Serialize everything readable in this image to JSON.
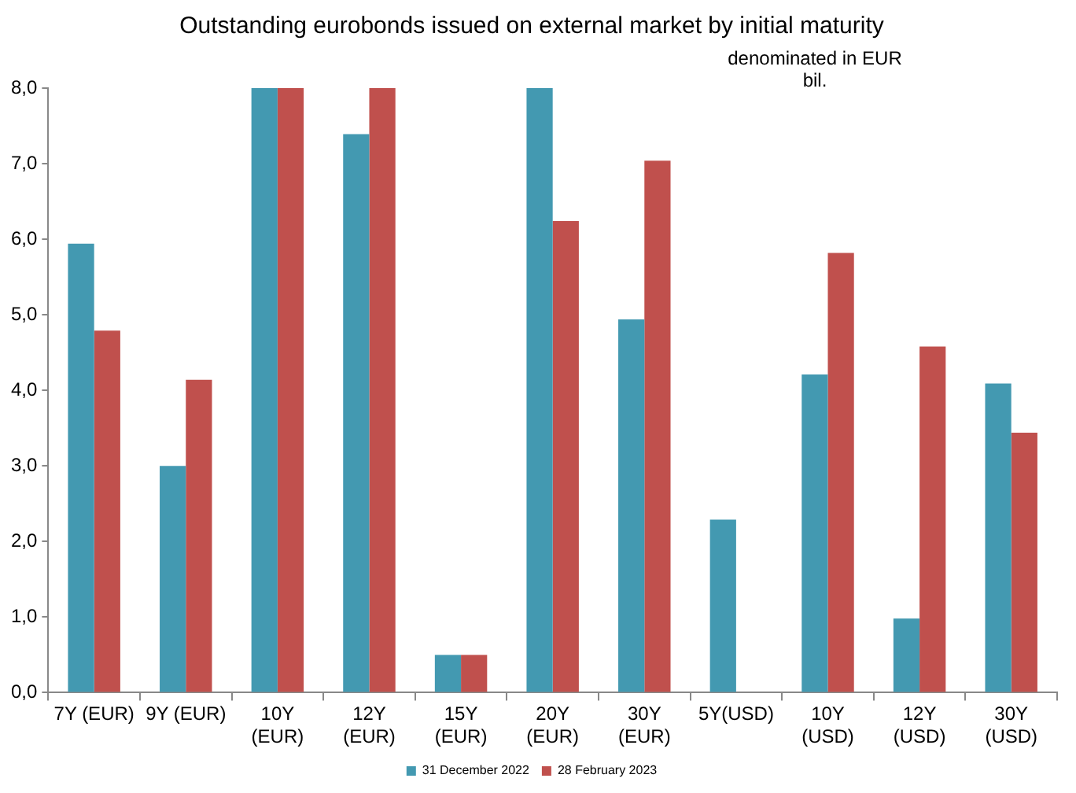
{
  "chart_data": {
    "type": "bar",
    "title": "Outstanding eurobonds issued on external market by initial maturity",
    "annotations": [
      "denominated in EUR bil."
    ],
    "categories": [
      "7Y (EUR)",
      "9Y (EUR)",
      "10Y (EUR)",
      "12Y (EUR)",
      "15Y (EUR)",
      "20Y (EUR)",
      "30Y (EUR)",
      "5Y(USD)",
      "10Y (USD)",
      "12Y (USD)",
      "30Y (USD)"
    ],
    "series": [
      {
        "name": "31 December 2022",
        "color": "#4399b1",
        "values": [
          5.94,
          3.0,
          8.0,
          7.39,
          0.5,
          8.0,
          4.94,
          2.29,
          4.21,
          0.98,
          4.09
        ]
      },
      {
        "name": "28 February 2023",
        "color": "#c0504d",
        "values": [
          4.79,
          4.14,
          8.0,
          8.0,
          0.5,
          6.24,
          7.04,
          null,
          5.82,
          4.58,
          3.44
        ]
      }
    ],
    "ylim": [
      0,
      8
    ],
    "yticks": [
      {
        "value": 0,
        "label": "0,0"
      },
      {
        "value": 1,
        "label": "1,0"
      },
      {
        "value": 2,
        "label": "2,0"
      },
      {
        "value": 3,
        "label": "3,0"
      },
      {
        "value": 4,
        "label": "4,0"
      },
      {
        "value": 5,
        "label": "5,0"
      },
      {
        "value": 6,
        "label": "6,0"
      },
      {
        "value": 7,
        "label": "7,0"
      },
      {
        "value": 8,
        "label": "8,0"
      }
    ],
    "grid": false,
    "legend": "bottom"
  }
}
